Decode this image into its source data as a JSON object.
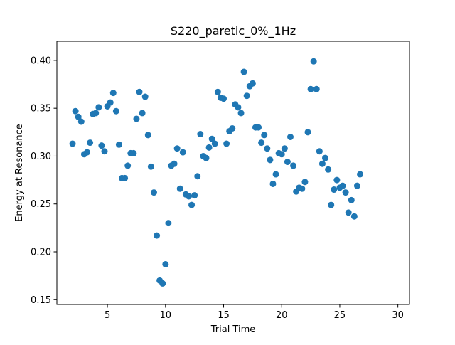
{
  "chart_data": {
    "type": "scatter",
    "title": "S220_paretic_0%_1Hz",
    "xlabel": "Trial Time",
    "ylabel": "Energy at Resonance",
    "xlim": [
      0.65,
      31.0
    ],
    "ylim": [
      0.145,
      0.42
    ],
    "xticks": [
      5,
      10,
      15,
      20,
      25,
      30
    ],
    "xtick_labels": [
      "5",
      "10",
      "15",
      "20",
      "25",
      "30"
    ],
    "yticks": [
      0.15,
      0.2,
      0.25,
      0.3,
      0.35,
      0.4
    ],
    "ytick_labels": [
      "0.15",
      "0.20",
      "0.25",
      "0.30",
      "0.35",
      "0.40"
    ],
    "grid": false,
    "marker_color": "#1f77b4",
    "series": [
      {
        "points": [
          [
            2.0,
            0.313
          ],
          [
            2.25,
            0.347
          ],
          [
            2.5,
            0.341
          ],
          [
            2.75,
            0.336
          ],
          [
            3.0,
            0.302
          ],
          [
            3.25,
            0.304
          ],
          [
            3.5,
            0.314
          ],
          [
            3.75,
            0.344
          ],
          [
            4.0,
            0.345
          ],
          [
            4.25,
            0.351
          ],
          [
            4.5,
            0.311
          ],
          [
            4.75,
            0.305
          ],
          [
            5.0,
            0.352
          ],
          [
            5.25,
            0.356
          ],
          [
            5.5,
            0.366
          ],
          [
            5.75,
            0.347
          ],
          [
            6.0,
            0.312
          ],
          [
            6.25,
            0.277
          ],
          [
            6.5,
            0.277
          ],
          [
            6.75,
            0.29
          ],
          [
            7.0,
            0.303
          ],
          [
            7.25,
            0.303
          ],
          [
            7.5,
            0.339
          ],
          [
            7.75,
            0.367
          ],
          [
            8.0,
            0.345
          ],
          [
            8.25,
            0.362
          ],
          [
            8.5,
            0.322
          ],
          [
            8.75,
            0.289
          ],
          [
            9.0,
            0.262
          ],
          [
            9.25,
            0.217
          ],
          [
            9.5,
            0.17
          ],
          [
            9.75,
            0.167
          ],
          [
            10.0,
            0.187
          ],
          [
            10.25,
            0.23
          ],
          [
            10.5,
            0.29
          ],
          [
            10.75,
            0.292
          ],
          [
            11.0,
            0.308
          ],
          [
            11.25,
            0.266
          ],
          [
            11.5,
            0.304
          ],
          [
            11.75,
            0.26
          ],
          [
            12.0,
            0.258
          ],
          [
            12.25,
            0.249
          ],
          [
            12.5,
            0.259
          ],
          [
            12.75,
            0.279
          ],
          [
            13.0,
            0.323
          ],
          [
            13.25,
            0.3
          ],
          [
            13.5,
            0.298
          ],
          [
            13.75,
            0.309
          ],
          [
            14.0,
            0.318
          ],
          [
            14.25,
            0.313
          ],
          [
            14.5,
            0.367
          ],
          [
            14.75,
            0.361
          ],
          [
            15.0,
            0.36
          ],
          [
            15.25,
            0.313
          ],
          [
            15.5,
            0.326
          ],
          [
            15.75,
            0.329
          ],
          [
            16.0,
            0.354
          ],
          [
            16.25,
            0.351
          ],
          [
            16.5,
            0.345
          ],
          [
            16.75,
            0.388
          ],
          [
            17.0,
            0.363
          ],
          [
            17.25,
            0.373
          ],
          [
            17.5,
            0.376
          ],
          [
            17.75,
            0.33
          ],
          [
            18.0,
            0.33
          ],
          [
            18.25,
            0.314
          ],
          [
            18.5,
            0.322
          ],
          [
            18.75,
            0.308
          ],
          [
            19.0,
            0.296
          ],
          [
            19.25,
            0.271
          ],
          [
            19.5,
            0.281
          ],
          [
            19.75,
            0.303
          ],
          [
            20.0,
            0.302
          ],
          [
            20.25,
            0.308
          ],
          [
            20.5,
            0.294
          ],
          [
            20.75,
            0.32
          ],
          [
            21.0,
            0.29
          ],
          [
            21.25,
            0.263
          ],
          [
            21.5,
            0.267
          ],
          [
            21.75,
            0.266
          ],
          [
            22.0,
            0.273
          ],
          [
            22.25,
            0.325
          ],
          [
            22.5,
            0.37
          ],
          [
            22.75,
            0.399
          ],
          [
            23.0,
            0.37
          ],
          [
            23.25,
            0.305
          ],
          [
            23.5,
            0.292
          ],
          [
            23.75,
            0.298
          ],
          [
            24.0,
            0.286
          ],
          [
            24.25,
            0.249
          ],
          [
            24.5,
            0.265
          ],
          [
            24.75,
            0.275
          ],
          [
            25.0,
            0.267
          ],
          [
            25.25,
            0.269
          ],
          [
            25.5,
            0.262
          ],
          [
            25.75,
            0.241
          ],
          [
            26.0,
            0.254
          ],
          [
            26.25,
            0.237
          ],
          [
            26.5,
            0.269
          ],
          [
            26.75,
            0.281
          ]
        ]
      }
    ]
  }
}
